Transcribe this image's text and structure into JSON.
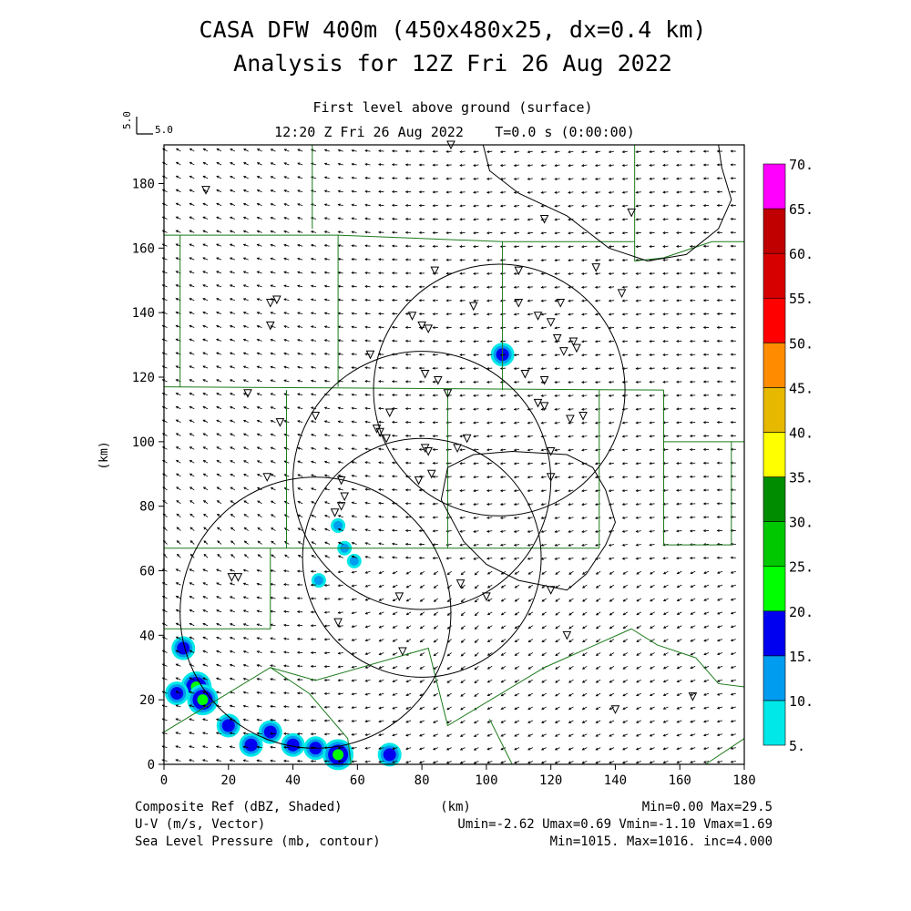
{
  "header": {
    "title_line1": "CASA DFW 400m (450x480x25, dx=0.4 km)",
    "title_line2": "Analysis for 12Z Fri 26 Aug 2022",
    "level": "First level above ground (surface)",
    "valid_time": "12:20 Z Fri 26 Aug 2022",
    "forecast_time": "T=0.0 s (0:00:00)",
    "vector_scale": "5.0",
    "vector_scale_side": "5.0"
  },
  "axes": {
    "x_label": "(km)",
    "y_label": "(km)",
    "x_ticks": [
      "0",
      "20",
      "40",
      "60",
      "80",
      "100",
      "120",
      "140",
      "160",
      "180"
    ],
    "y_ticks": [
      "0",
      "20",
      "40",
      "60",
      "80",
      "100",
      "120",
      "140",
      "160",
      "180"
    ],
    "x_range": [
      0,
      180
    ],
    "y_range": [
      0,
      192
    ]
  },
  "colorbar": {
    "labels": [
      "5.",
      "10.",
      "15.",
      "20.",
      "25.",
      "30.",
      "35.",
      "40.",
      "45.",
      "50.",
      "55.",
      "60.",
      "65.",
      "70."
    ],
    "colors": [
      "#00e8e8",
      "#009cf0",
      "#0000f0",
      "#00ff00",
      "#00c800",
      "#008c00",
      "#ffff00",
      "#e6b800",
      "#ff8c00",
      "#ff0000",
      "#d60000",
      "#c00000",
      "#ff00ff"
    ]
  },
  "footer": {
    "field1": "Composite Ref (dBZ, Shaded)",
    "field2": "U-V (m/s, Vector)",
    "field3": "Sea Level Pressure (mb, contour)",
    "center_label": "(km)",
    "stats1": "Min=0.00 Max=29.5",
    "stats2": "Umin=-2.62 Umax=0.69 Vmin=-1.10 Vmax=1.69",
    "stats3": "Min=1015. Max=1016. inc=4.000"
  },
  "chart_data": {
    "type": "map",
    "radar_range_rings_km": [
      {
        "cx": 47,
        "cy": 47,
        "r": 42
      },
      {
        "cx": 80,
        "cy": 88,
        "r": 40
      },
      {
        "cx": 80,
        "cy": 64,
        "r": 37
      },
      {
        "cx": 104,
        "cy": 116,
        "r": 39
      }
    ],
    "station_markers_km": [
      [
        13,
        178
      ],
      [
        33,
        143
      ],
      [
        33,
        136
      ],
      [
        35,
        144
      ],
      [
        26,
        115
      ],
      [
        36,
        106
      ],
      [
        32,
        89
      ],
      [
        47,
        108
      ],
      [
        64,
        127
      ],
      [
        77,
        139
      ],
      [
        84,
        153
      ],
      [
        96,
        142
      ],
      [
        80,
        136
      ],
      [
        82,
        135
      ],
      [
        81,
        121
      ],
      [
        85,
        119
      ],
      [
        88,
        115
      ],
      [
        70,
        109
      ],
      [
        66,
        104
      ],
      [
        67,
        103
      ],
      [
        69,
        101
      ],
      [
        81,
        98
      ],
      [
        82,
        97
      ],
      [
        91,
        98
      ],
      [
        94,
        101
      ],
      [
        83,
        90
      ],
      [
        79,
        88
      ],
      [
        55,
        88
      ],
      [
        56,
        83
      ],
      [
        53,
        78
      ],
      [
        55,
        80
      ],
      [
        110,
        153
      ],
      [
        110,
        143
      ],
      [
        116,
        139
      ],
      [
        120,
        137
      ],
      [
        122,
        132
      ],
      [
        124,
        128
      ],
      [
        127,
        131
      ],
      [
        128,
        129
      ],
      [
        123,
        143
      ],
      [
        134,
        154
      ],
      [
        142,
        146
      ],
      [
        145,
        171
      ],
      [
        118,
        169
      ],
      [
        112,
        121
      ],
      [
        116,
        112
      ],
      [
        118,
        111
      ],
      [
        118,
        119
      ],
      [
        126,
        107
      ],
      [
        130,
        108
      ],
      [
        120,
        97
      ],
      [
        120,
        89
      ],
      [
        73,
        52
      ],
      [
        54,
        44
      ],
      [
        74,
        35
      ],
      [
        92,
        56
      ],
      [
        100,
        52
      ],
      [
        120,
        54
      ],
      [
        125,
        40
      ],
      [
        140,
        17
      ],
      [
        164,
        21
      ],
      [
        21,
        58
      ],
      [
        23,
        58
      ],
      [
        89,
        192
      ]
    ],
    "reflectivity_echoes": [
      {
        "x": 6,
        "y": 36,
        "dbz": 15
      },
      {
        "x": 10,
        "y": 24,
        "dbz": 25
      },
      {
        "x": 12,
        "y": 20,
        "dbz": 20
      },
      {
        "x": 4,
        "y": 22,
        "dbz": 15
      },
      {
        "x": 20,
        "y": 12,
        "dbz": 15
      },
      {
        "x": 27,
        "y": 6,
        "dbz": 15
      },
      {
        "x": 33,
        "y": 10,
        "dbz": 15
      },
      {
        "x": 40,
        "y": 6,
        "dbz": 15
      },
      {
        "x": 47,
        "y": 5,
        "dbz": 15
      },
      {
        "x": 54,
        "y": 3,
        "dbz": 20
      },
      {
        "x": 70,
        "y": 3,
        "dbz": 15
      },
      {
        "x": 105,
        "y": 127,
        "dbz": 15
      },
      {
        "x": 54,
        "y": 74,
        "dbz": 10
      },
      {
        "x": 56,
        "y": 67,
        "dbz": 10
      },
      {
        "x": 48,
        "y": 57,
        "dbz": 10
      },
      {
        "x": 59,
        "y": 63,
        "dbz": 10
      }
    ],
    "data_min": 0.0,
    "data_max": 29.5
  }
}
